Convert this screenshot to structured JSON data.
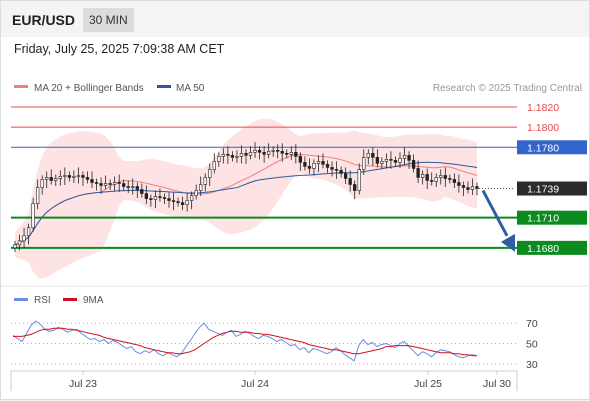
{
  "header": {
    "symbol": "EUR/USD",
    "timeframe": "30 MIN",
    "datetime": "Friday, July 25, 2025 7:09:38 AM CET"
  },
  "legend": {
    "ma20": {
      "label": "MA 20 + Bollinger Bands",
      "color": "#f08080"
    },
    "ma50": {
      "label": "MA 50",
      "color": "#2c5aa0"
    },
    "credit": "Research © 2025 Trading Central"
  },
  "colors": {
    "resistance": "#e8474b",
    "pivot": "#3366cc",
    "support": "#0b8a1f",
    "current": "#2b2b2b",
    "arrow": "#2b5f9e",
    "up_candle": "#ffffff",
    "down_candle": "#222222",
    "rsi": "#6b8ede",
    "rsi_ma": "#d01020"
  },
  "chart_data": [
    {
      "type": "candlestick",
      "title": "",
      "x_ticks": [
        "Jul 23",
        "Jul 24",
        "Jul 25",
        "Jul 30"
      ],
      "ylim": [
        1.1655,
        1.183
      ],
      "levels": [
        {
          "value": 1.182,
          "label": "1.1820",
          "kind": "resistance"
        },
        {
          "value": 1.18,
          "label": "1.1800",
          "kind": "resistance"
        },
        {
          "value": 1.178,
          "label": "1.1780",
          "kind": "pivot"
        },
        {
          "value": 1.1739,
          "label": "1.1739",
          "kind": "current"
        },
        {
          "value": 1.171,
          "label": "1.1710",
          "kind": "support"
        },
        {
          "value": 1.168,
          "label": "1.1680",
          "kind": "support"
        }
      ],
      "close_series": [
        1.1683,
        1.1687,
        1.1692,
        1.17,
        1.1724,
        1.174,
        1.1748,
        1.175,
        1.1747,
        1.1749,
        1.1751,
        1.1752,
        1.175,
        1.1751,
        1.1752,
        1.175,
        1.1748,
        1.1745,
        1.1744,
        1.1742,
        1.1744,
        1.1743,
        1.1745,
        1.1744,
        1.1741,
        1.174,
        1.1741,
        1.1738,
        1.1734,
        1.1729,
        1.1728,
        1.1731,
        1.173,
        1.1729,
        1.1727,
        1.1726,
        1.1725,
        1.1723,
        1.1727,
        1.1732,
        1.1737,
        1.1743,
        1.175,
        1.1758,
        1.1766,
        1.1771,
        1.1773,
        1.1772,
        1.177,
        1.1771,
        1.1774,
        1.1772,
        1.1775,
        1.1777,
        1.1775,
        1.1773,
        1.1776,
        1.1777,
        1.1776,
        1.1774,
        1.1773,
        1.1775,
        1.1771,
        1.1765,
        1.1761,
        1.1759,
        1.1764,
        1.1766,
        1.1763,
        1.176,
        1.1758,
        1.1757,
        1.1754,
        1.1749,
        1.1743,
        1.1737,
        1.1758,
        1.177,
        1.1774,
        1.177,
        1.1764,
        1.1766,
        1.1768,
        1.1767,
        1.1765,
        1.1769,
        1.1772,
        1.1767,
        1.1759,
        1.175,
        1.1753,
        1.1747,
        1.1746,
        1.175,
        1.1752,
        1.1749,
        1.1748,
        1.1745,
        1.1742,
        1.174,
        1.1738,
        1.1741,
        1.1739
      ]
    },
    {
      "type": "line",
      "title": "RSI",
      "series_names": [
        "RSI",
        "9MA"
      ],
      "y_ticks": [
        30,
        50,
        70
      ],
      "ylim": [
        25,
        80
      ],
      "rsi": [
        58,
        55,
        52,
        60,
        68,
        72,
        69,
        64,
        62,
        63,
        66,
        64,
        61,
        63,
        64,
        60,
        57,
        54,
        55,
        52,
        54,
        50,
        53,
        51,
        48,
        45,
        47,
        42,
        40,
        43,
        41,
        44,
        40,
        38,
        41,
        39,
        37,
        40,
        47,
        53,
        60,
        66,
        70,
        64,
        62,
        60,
        58,
        61,
        63,
        57,
        59,
        62,
        60,
        57,
        55,
        58,
        57,
        55,
        52,
        54,
        51,
        48,
        49,
        44,
        46,
        41,
        45,
        44,
        42,
        40,
        42,
        46,
        43,
        39,
        36,
        33,
        48,
        54,
        49,
        51,
        47,
        49,
        50,
        48,
        46,
        50,
        52,
        47,
        43,
        38,
        42,
        40,
        37,
        41,
        44,
        43,
        42,
        39,
        37,
        36,
        38,
        39,
        38
      ],
      "ma9": [
        57,
        57,
        57,
        58,
        59,
        61,
        63,
        64,
        64,
        65,
        65,
        65,
        64,
        64,
        63,
        62,
        61,
        60,
        59,
        58,
        56,
        55,
        54,
        53,
        52,
        51,
        50,
        49,
        48,
        46,
        45,
        44,
        43,
        42,
        41,
        41,
        40,
        40,
        41,
        42,
        44,
        47,
        50,
        53,
        56,
        58,
        60,
        61,
        62,
        62,
        61,
        61,
        61,
        60,
        60,
        59,
        59,
        58,
        57,
        56,
        55,
        54,
        53,
        52,
        51,
        49,
        48,
        47,
        46,
        45,
        44,
        44,
        43,
        42,
        41,
        40,
        40,
        41,
        42,
        43,
        44,
        45,
        47,
        47,
        48,
        48,
        48,
        48,
        47,
        46,
        45,
        44,
        43,
        42,
        41,
        41,
        41,
        40,
        40,
        39,
        39,
        38,
        38
      ]
    }
  ]
}
